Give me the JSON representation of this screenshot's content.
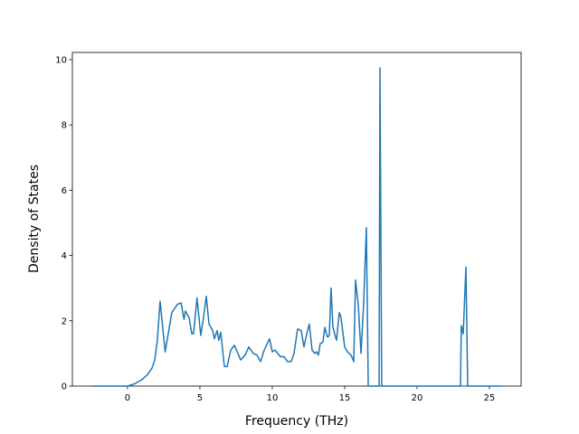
{
  "chart_data": {
    "type": "line",
    "xlabel": "Frequency (THz)",
    "ylabel": "Density of States",
    "xlim": [
      -3.81,
      27.19
    ],
    "ylim": [
      0,
      10.22
    ],
    "xticks": [
      0,
      5,
      10,
      15,
      20,
      25
    ],
    "yticks": [
      0,
      2,
      4,
      6,
      8,
      10
    ],
    "x": [
      -2.44,
      0,
      0.5,
      1.0,
      1.38,
      1.69,
      1.88,
      2.06,
      2.25,
      2.6,
      3.06,
      3.44,
      3.7,
      3.9,
      4.0,
      4.25,
      4.44,
      4.56,
      4.8,
      5.06,
      5.25,
      5.44,
      5.63,
      5.88,
      6.0,
      6.19,
      6.31,
      6.44,
      6.69,
      6.88,
      7.13,
      7.38,
      7.63,
      7.81,
      8.13,
      8.38,
      8.69,
      8.94,
      9.19,
      9.44,
      9.81,
      10.0,
      10.19,
      10.56,
      10.81,
      11.06,
      11.31,
      11.5,
      11.75,
      12.0,
      12.19,
      12.38,
      12.56,
      12.75,
      12.94,
      13.06,
      13.19,
      13.31,
      13.5,
      13.63,
      13.81,
      13.94,
      14.06,
      14.19,
      14.44,
      14.63,
      14.75,
      15.0,
      15.19,
      15.44,
      15.63,
      15.75,
      15.94,
      16.13,
      16.31,
      16.5,
      16.63,
      17.38,
      17.44,
      17.56,
      23.0,
      23.06,
      23.19,
      23.38,
      23.5,
      25.81
    ],
    "series": [
      {
        "name": "DOS",
        "color": "#1f77b4",
        "values": [
          0,
          0,
          0.07,
          0.2,
          0.35,
          0.55,
          0.8,
          1.4,
          2.6,
          1.05,
          2.25,
          2.5,
          2.55,
          2.05,
          2.3,
          2.1,
          1.6,
          1.6,
          2.7,
          1.55,
          2.1,
          2.75,
          1.9,
          1.7,
          1.45,
          1.7,
          1.4,
          1.65,
          0.6,
          0.6,
          1.1,
          1.25,
          1.0,
          0.8,
          0.95,
          1.2,
          1.0,
          0.95,
          0.75,
          1.1,
          1.45,
          1.05,
          1.1,
          0.9,
          0.9,
          0.75,
          0.75,
          1.0,
          1.75,
          1.7,
          1.2,
          1.6,
          1.9,
          1.1,
          1.0,
          1.05,
          0.95,
          1.3,
          1.35,
          1.8,
          1.5,
          1.55,
          3.0,
          1.8,
          1.4,
          2.25,
          2.1,
          1.2,
          1.05,
          0.95,
          0.75,
          3.25,
          2.5,
          1.0,
          2.5,
          4.85,
          0,
          0,
          9.75,
          0,
          0,
          1.85,
          1.6,
          3.65,
          0,
          0
        ]
      }
    ]
  }
}
